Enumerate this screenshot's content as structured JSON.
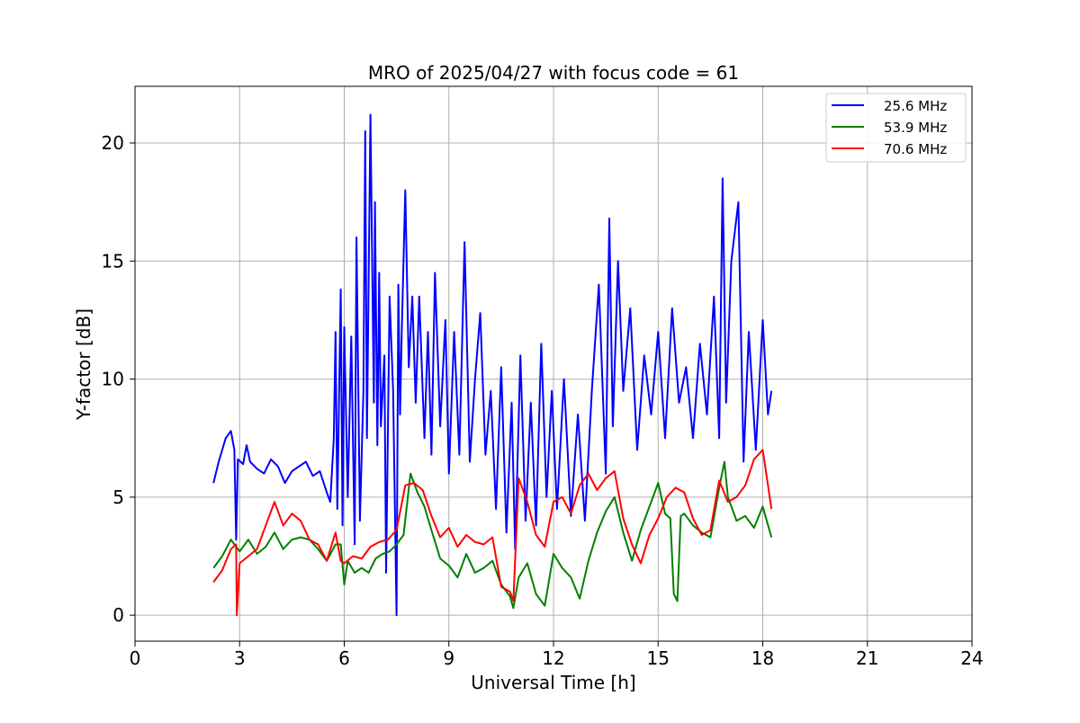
{
  "chart_data": {
    "type": "line",
    "title": "MRO of 2025/04/27 with focus code = 61",
    "xlabel": "Universal Time [h]",
    "ylabel": "Y-factor [dB]",
    "xlim": [
      0,
      24
    ],
    "ylim": [
      -1.1,
      22.4
    ],
    "xticks": [
      0,
      3,
      6,
      9,
      12,
      15,
      18,
      21,
      24
    ],
    "yticks": [
      0,
      5,
      10,
      15,
      20
    ],
    "grid": true,
    "legend_position": "top-right",
    "series": [
      {
        "name": "25.6 MHz",
        "color": "#0000ff",
        "x": [
          2.25,
          2.4,
          2.6,
          2.75,
          2.85,
          2.9,
          2.95,
          3.1,
          3.2,
          3.3,
          3.5,
          3.7,
          3.9,
          4.1,
          4.3,
          4.5,
          4.7,
          4.9,
          5.1,
          5.3,
          5.5,
          5.6,
          5.7,
          5.75,
          5.8,
          5.9,
          5.95,
          6.0,
          6.1,
          6.2,
          6.3,
          6.35,
          6.45,
          6.55,
          6.6,
          6.65,
          6.75,
          6.85,
          6.88,
          6.95,
          7.0,
          7.05,
          7.15,
          7.2,
          7.3,
          7.4,
          7.5,
          7.55,
          7.6,
          7.65,
          7.75,
          7.85,
          7.95,
          8.05,
          8.15,
          8.3,
          8.4,
          8.5,
          8.6,
          8.75,
          8.9,
          9.0,
          9.15,
          9.3,
          9.45,
          9.6,
          9.75,
          9.9,
          10.05,
          10.2,
          10.35,
          10.5,
          10.65,
          10.8,
          10.9,
          11.05,
          11.2,
          11.35,
          11.5,
          11.65,
          11.8,
          11.95,
          12.1,
          12.3,
          12.5,
          12.7,
          12.9,
          13.1,
          13.3,
          13.5,
          13.6,
          13.7,
          13.85,
          14.0,
          14.2,
          14.4,
          14.6,
          14.8,
          15.0,
          15.2,
          15.4,
          15.6,
          15.8,
          16.0,
          16.2,
          16.4,
          16.6,
          16.75,
          16.85,
          16.95,
          17.1,
          17.3,
          17.45,
          17.6,
          17.8,
          18.0,
          18.15,
          18.25
        ],
        "values": [
          5.6,
          6.5,
          7.5,
          7.8,
          7.0,
          3.2,
          6.6,
          6.4,
          7.2,
          6.5,
          6.2,
          6.0,
          6.6,
          6.3,
          5.6,
          6.1,
          6.3,
          6.5,
          5.9,
          6.1,
          5.2,
          4.8,
          7.5,
          12.0,
          4.5,
          13.8,
          3.8,
          12.2,
          5.0,
          11.8,
          3.0,
          16.0,
          4.0,
          9.5,
          20.5,
          7.5,
          21.2,
          9.0,
          17.5,
          7.2,
          14.5,
          8.0,
          11.0,
          1.8,
          13.5,
          9.5,
          0.0,
          14.0,
          8.5,
          12.0,
          18.0,
          10.5,
          13.5,
          9.0,
          13.5,
          7.5,
          12.0,
          6.8,
          14.5,
          8.0,
          12.5,
          6.0,
          12.0,
          6.8,
          15.8,
          6.5,
          10.0,
          12.8,
          6.8,
          9.5,
          4.5,
          10.5,
          3.5,
          9.0,
          2.8,
          11.0,
          4.0,
          9.0,
          3.8,
          11.5,
          5.0,
          9.5,
          4.5,
          10.0,
          4.2,
          8.5,
          4.0,
          9.5,
          14.0,
          6.0,
          16.8,
          8.0,
          15.0,
          9.5,
          13.0,
          7.0,
          11.0,
          8.5,
          12.0,
          7.5,
          13.0,
          9.0,
          10.5,
          7.5,
          11.5,
          8.5,
          13.5,
          7.5,
          18.5,
          9.0,
          15.0,
          17.5,
          6.5,
          12.0,
          7.0,
          12.5,
          8.5,
          9.5
        ]
      },
      {
        "name": "53.9 MHz",
        "color": "#008000",
        "x": [
          2.25,
          2.5,
          2.75,
          3.0,
          3.25,
          3.5,
          3.75,
          4.0,
          4.25,
          4.5,
          4.75,
          5.0,
          5.25,
          5.5,
          5.75,
          5.9,
          6.0,
          6.1,
          6.3,
          6.5,
          6.7,
          6.9,
          7.1,
          7.3,
          7.5,
          7.7,
          7.9,
          8.1,
          8.3,
          8.5,
          8.75,
          9.0,
          9.25,
          9.5,
          9.75,
          10.0,
          10.25,
          10.5,
          10.75,
          10.85,
          11.0,
          11.25,
          11.5,
          11.75,
          12.0,
          12.25,
          12.5,
          12.75,
          13.0,
          13.25,
          13.5,
          13.75,
          14.0,
          14.25,
          14.5,
          14.75,
          15.0,
          15.2,
          15.35,
          15.45,
          15.55,
          15.65,
          15.75,
          16.0,
          16.25,
          16.5,
          16.75,
          16.9,
          17.0,
          17.25,
          17.5,
          17.75,
          18.0,
          18.25
        ],
        "values": [
          2.0,
          2.5,
          3.2,
          2.7,
          3.2,
          2.6,
          2.9,
          3.5,
          2.8,
          3.2,
          3.3,
          3.2,
          2.8,
          2.3,
          3.0,
          3.0,
          1.3,
          2.3,
          1.8,
          2.0,
          1.8,
          2.4,
          2.6,
          2.7,
          3.0,
          3.4,
          6.0,
          5.2,
          4.6,
          3.6,
          2.4,
          2.1,
          1.6,
          2.6,
          1.8,
          2.0,
          2.3,
          1.3,
          0.8,
          0.3,
          1.6,
          2.2,
          0.9,
          0.4,
          2.6,
          2.0,
          1.6,
          0.7,
          2.3,
          3.5,
          4.4,
          5.0,
          3.5,
          2.3,
          3.6,
          4.6,
          5.6,
          4.3,
          4.1,
          0.9,
          0.6,
          4.2,
          4.3,
          3.8,
          3.5,
          3.3,
          5.4,
          6.5,
          5.0,
          4.0,
          4.2,
          3.7,
          4.6,
          3.3
        ]
      },
      {
        "name": "70.6 MHz",
        "color": "#ff0000",
        "x": [
          2.25,
          2.5,
          2.75,
          2.9,
          2.92,
          3.0,
          3.25,
          3.5,
          3.75,
          4.0,
          4.25,
          4.5,
          4.75,
          5.0,
          5.25,
          5.5,
          5.75,
          5.9,
          6.0,
          6.25,
          6.5,
          6.75,
          7.0,
          7.25,
          7.5,
          7.75,
          8.0,
          8.25,
          8.5,
          8.75,
          9.0,
          9.25,
          9.5,
          9.75,
          10.0,
          10.25,
          10.5,
          10.75,
          10.85,
          11.0,
          11.25,
          11.5,
          11.75,
          12.0,
          12.25,
          12.5,
          12.75,
          13.0,
          13.25,
          13.5,
          13.75,
          14.0,
          14.25,
          14.5,
          14.75,
          15.0,
          15.25,
          15.5,
          15.75,
          16.0,
          16.25,
          16.5,
          16.75,
          17.0,
          17.25,
          17.5,
          17.75,
          18.0,
          18.25
        ],
        "values": [
          1.4,
          1.9,
          2.8,
          3.0,
          0.0,
          2.2,
          2.5,
          2.8,
          3.8,
          4.8,
          3.8,
          4.3,
          4.0,
          3.2,
          3.0,
          2.3,
          3.5,
          2.3,
          2.2,
          2.5,
          2.4,
          2.9,
          3.1,
          3.2,
          3.6,
          5.5,
          5.6,
          5.3,
          4.2,
          3.3,
          3.7,
          2.9,
          3.4,
          3.1,
          3.0,
          3.3,
          1.2,
          1.0,
          0.6,
          5.8,
          4.8,
          3.4,
          2.9,
          4.8,
          5.0,
          4.3,
          5.5,
          6.0,
          5.3,
          5.8,
          6.1,
          4.1,
          3.0,
          2.2,
          3.4,
          4.1,
          5.0,
          5.4,
          5.2,
          4.1,
          3.4,
          3.6,
          5.7,
          4.8,
          5.0,
          5.5,
          6.6,
          7.0,
          4.5
        ]
      }
    ]
  }
}
